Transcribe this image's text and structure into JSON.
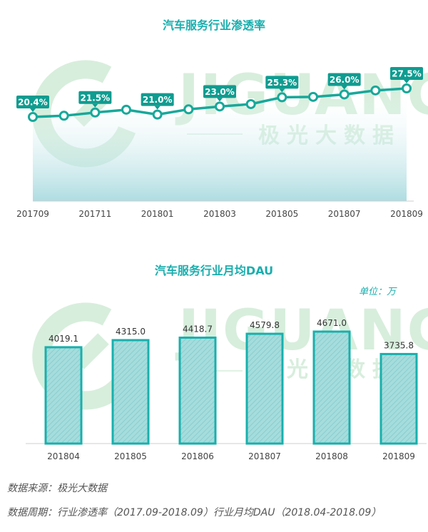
{
  "colors": {
    "accent": "#1aaeae",
    "line": "#17a89a",
    "label_bg": "#0f9c90",
    "bar_fill": "#a6dcdc",
    "bar_stroke": "#18b0ad",
    "watermark": "#d7eedc"
  },
  "watermark": {
    "brand": "JIGUANG",
    "sub": "极光大数据"
  },
  "chart1": {
    "title": "汽车服务行业渗透率",
    "chart_data": {
      "type": "area",
      "x": [
        "201709",
        "201710",
        "201711",
        "201712",
        "201801",
        "201802",
        "201803",
        "201804",
        "201805",
        "201806",
        "201807",
        "201808",
        "201809"
      ],
      "tick_labels": [
        "201709",
        "201711",
        "201801",
        "201803",
        "201805",
        "201807",
        "201809"
      ],
      "values": [
        20.4,
        20.7,
        21.5,
        22.2,
        21.0,
        22.3,
        23.0,
        23.6,
        25.3,
        25.4,
        26.0,
        27.0,
        27.5
      ],
      "data_labels": [
        {
          "index": 0,
          "text": "20.4%"
        },
        {
          "index": 2,
          "text": "21.5%"
        },
        {
          "index": 4,
          "text": "21.0%"
        },
        {
          "index": 6,
          "text": "23.0%"
        },
        {
          "index": 8,
          "text": "25.3%"
        },
        {
          "index": 10,
          "text": "26.0%"
        },
        {
          "index": 12,
          "text": "27.5%"
        }
      ],
      "ylim": [
        0,
        30
      ],
      "grid": false
    }
  },
  "chart2": {
    "title": "汽车服务行业月均DAU",
    "unit": "单位：万",
    "chart_data": {
      "type": "bar",
      "categories": [
        "201804",
        "201805",
        "201806",
        "201807",
        "201808",
        "201809"
      ],
      "values": [
        4019.1,
        4315.0,
        4418.7,
        4579.8,
        4671.0,
        3735.8
      ],
      "value_labels": [
        "4019.1",
        "4315.0",
        "4418.7",
        "4579.8",
        "4671.0",
        "3735.8"
      ],
      "ylim": [
        0,
        5400
      ],
      "grid": false
    }
  },
  "footer": {
    "source": "数据来源：极光大数据",
    "period": "数据周期：行业渗透率（2017.09-2018.09）行业月均DAU（2018.04-2018.09）"
  }
}
